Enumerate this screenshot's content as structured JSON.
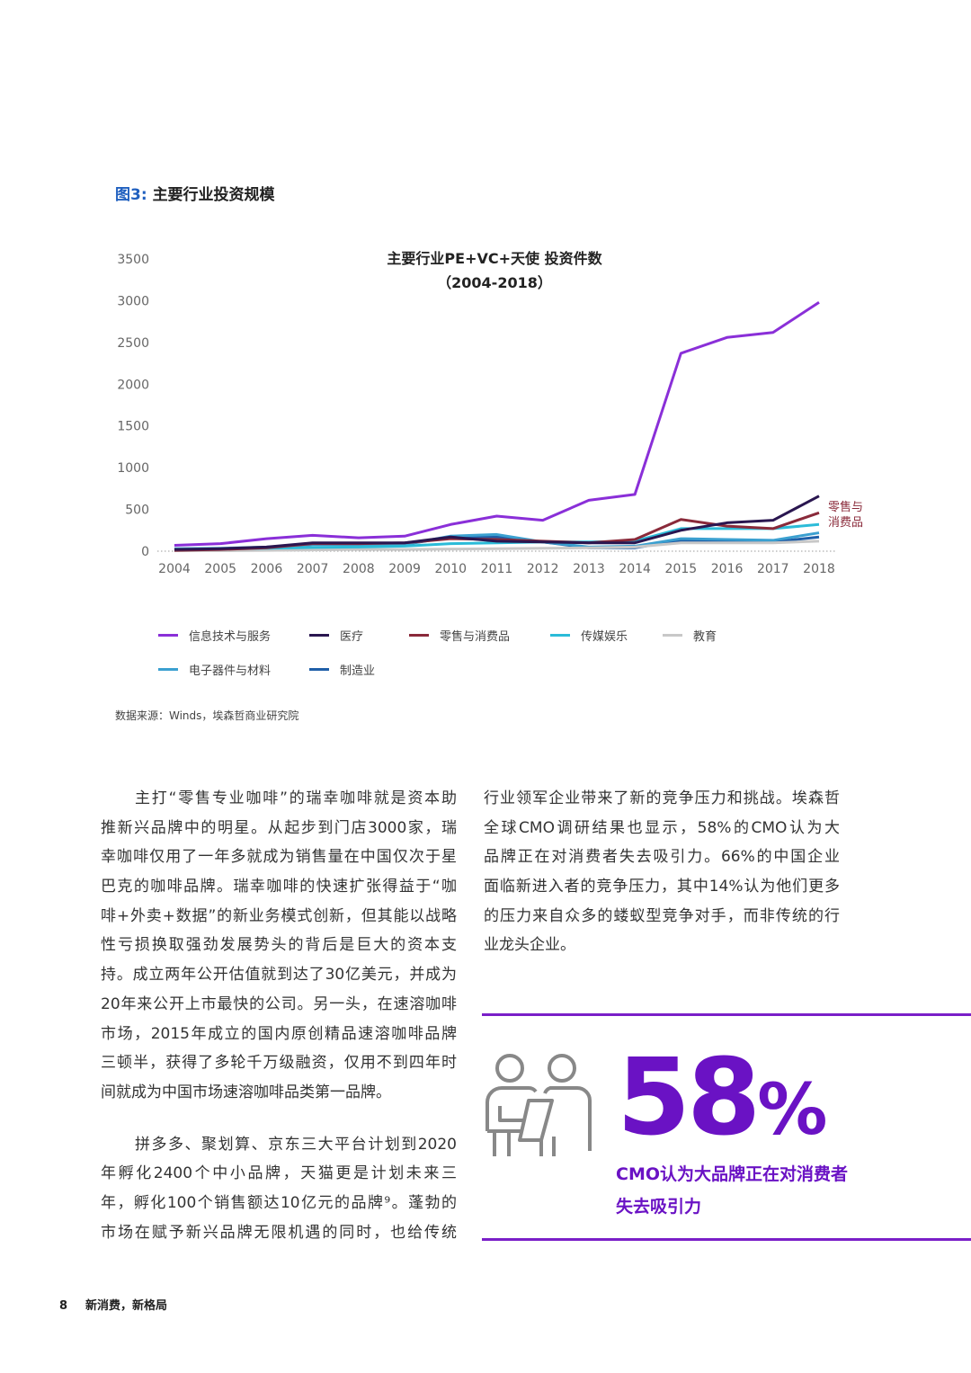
{
  "figure": {
    "label": "图3:",
    "title": "主要行业投资规模"
  },
  "chart_data": {
    "type": "line",
    "title": "主要行业PE+VC+天使 投资件数",
    "subtitle": "（2004-2018）",
    "x": [
      "2004",
      "2005",
      "2006",
      "2007",
      "2008",
      "2009",
      "2010",
      "2011",
      "2012",
      "2013",
      "2014",
      "2015",
      "2016",
      "2017",
      "2018"
    ],
    "yticks": [
      "0",
      "500",
      "1000",
      "1500",
      "2000",
      "2500",
      "3000",
      "3500"
    ],
    "ylim": [
      0,
      3500
    ],
    "annotation": {
      "text_line1": "零售与",
      "text_line2": "消费品",
      "color": "#8a2a3a"
    },
    "legend_position": "bottom",
    "series": [
      {
        "name": "信息技术与服务",
        "color": "#8a2fd8",
        "values": [
          70,
          90,
          150,
          190,
          160,
          180,
          320,
          420,
          370,
          610,
          680,
          2370,
          2560,
          2620,
          2980
        ]
      },
      {
        "name": "医疗",
        "color": "#2a1650",
        "values": [
          20,
          30,
          50,
          100,
          100,
          100,
          170,
          120,
          110,
          100,
          100,
          250,
          340,
          370,
          660
        ]
      },
      {
        "name": "零售与消费品",
        "color": "#8a2a3a",
        "values": [
          10,
          20,
          40,
          90,
          90,
          100,
          150,
          140,
          120,
          100,
          140,
          380,
          300,
          270,
          460
        ]
      },
      {
        "name": "传媒娱乐",
        "color": "#2bbbd8",
        "values": [
          20,
          25,
          35,
          45,
          50,
          60,
          90,
          100,
          110,
          110,
          120,
          270,
          270,
          270,
          320
        ]
      },
      {
        "name": "教育",
        "color": "#c8c8c8",
        "values": [
          5,
          5,
          10,
          15,
          20,
          20,
          25,
          30,
          35,
          40,
          50,
          100,
          100,
          100,
          120
        ]
      },
      {
        "name": "电子器件与材料",
        "color": "#3ba0d0",
        "values": [
          30,
          35,
          50,
          80,
          80,
          80,
          180,
          200,
          110,
          50,
          60,
          150,
          140,
          130,
          220
        ]
      },
      {
        "name": "制造业",
        "color": "#1f5fa8",
        "values": [
          25,
          30,
          45,
          80,
          80,
          80,
          170,
          170,
          110,
          40,
          40,
          130,
          120,
          110,
          170
        ]
      }
    ]
  },
  "source": "数据来源：Winds，埃森哲商业研究院",
  "left_column": {
    "para1": [
      "主打“零售专业咖啡”的瑞幸咖啡就是资本助",
      "推新兴品牌中的明星。从起步到门店3000家，瑞",
      "幸咖啡仅用了一年多就成为销售量在中国仅次于星",
      "巴克的咖啡品牌。瑞幸咖啡的快速扩张得益于“咖",
      "啡+外卖+数据”的新业务模式创新，但其能以战略",
      "性亏损换取强劲发展势头的背后是巨大的资本支",
      "持。成立两年公开估值就到达了30亿美元，并成为",
      "20年来公开上市最快的公司。另一头，在速溶咖啡",
      "市场，2015年成立的国内原创精品速溶咖啡品牌",
      "三顿半，获得了多轮千万级融资，仅用不到四年时",
      "间就成为中国市场速溶咖啡品类第一品牌。"
    ],
    "para2": [
      "拼多多、聚划算、京东三大平台计划到2020",
      "年孵化2400个中小品牌，天猫更是计划未来三",
      "年，孵化100个销售额达10亿元的品牌⁹。蓬勃的",
      "市场在赋予新兴品牌无限机遇的同时，也给传统"
    ]
  },
  "right_column": {
    "para": [
      "行业领军企业带来了新的竞争压力和挑战。埃森哲",
      "全球CMO调研结果也显示，58%的CMO认为大",
      "品牌正在对消费者失去吸引力。66%的中国企业",
      "面临新进入者的竞争压力，其中14%认为他们更多",
      "的压力来自众多的蝼蚁型竞争对手，而非传统的行",
      "业龙头企业。"
    ]
  },
  "highlight": {
    "number": "58",
    "percent": "%",
    "caption_line1": "CMO认为大品牌正在对消费者",
    "caption_line2": "失去吸引力",
    "color": "#6a12c4"
  },
  "footer": {
    "page_number": "8",
    "title": "新消费，新格局"
  }
}
